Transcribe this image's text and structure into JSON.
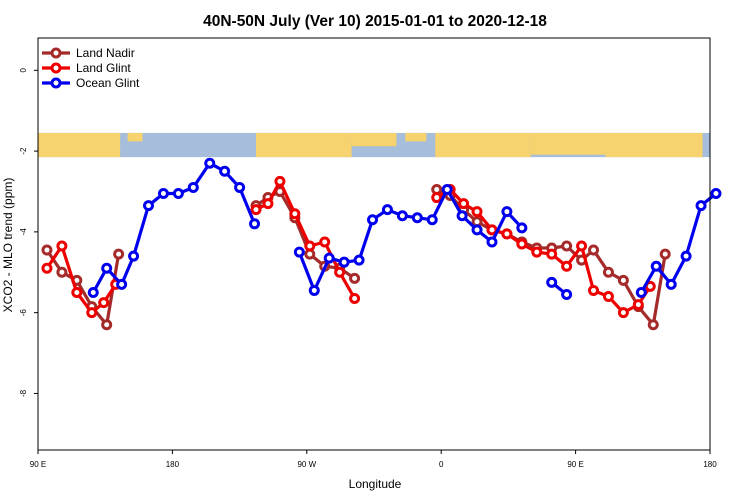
{
  "chart_data": {
    "type": "line",
    "title": "40N-50N July (Ver 10)   2015-01-01 to 2020-12-18",
    "xlabel": "Longitude",
    "ylabel": "XCO2 - MLO trend (ppm)",
    "xlim": [
      90,
      540
    ],
    "ylim": [
      -9.4,
      0.8
    ],
    "xticks": [
      {
        "value": 90,
        "label": "90 E"
      },
      {
        "value": 180,
        "label": "180"
      },
      {
        "value": 270,
        "label": "90 W"
      },
      {
        "value": 360,
        "label": "0"
      },
      {
        "value": 450,
        "label": "90 E"
      },
      {
        "value": 540,
        "label": "180"
      }
    ],
    "yticks": [
      {
        "value": 0,
        "label": "0"
      },
      {
        "value": -2,
        "label": "-2"
      },
      {
        "value": -4,
        "label": "-4"
      },
      {
        "value": -6,
        "label": "-6"
      },
      {
        "value": -8,
        "label": "-8"
      }
    ],
    "legend_position": "top-left",
    "map_strip": {
      "y_top": -1.55,
      "y_bottom": -2.15,
      "ocean_color": "#a6bddb",
      "land_color": "#f6d36e"
    },
    "series": [
      {
        "name": "Land Nadir",
        "color": "#a52a2a",
        "segments": [
          [
            [
              96,
              -4.45
            ],
            [
              106,
              -5.0
            ],
            [
              116,
              -5.2
            ],
            [
              126,
              -5.85
            ],
            [
              136,
              -6.3
            ],
            [
              144,
              -4.55
            ]
          ],
          [
            [
              236,
              -3.35
            ],
            [
              244,
              -3.15
            ],
            [
              252,
              -3.0
            ],
            [
              262,
              -3.65
            ],
            [
              272,
              -4.55
            ],
            [
              282,
              -4.85
            ],
            [
              292,
              -4.9
            ],
            [
              302,
              -5.15
            ]
          ],
          [
            [
              357,
              -2.95
            ],
            [
              366,
              -3.1
            ],
            [
              375,
              -3.45
            ],
            [
              384,
              -3.75
            ],
            [
              394,
              -3.95
            ],
            [
              404,
              -4.05
            ],
            [
              414,
              -4.25
            ],
            [
              424,
              -4.4
            ],
            [
              434,
              -4.4
            ],
            [
              444,
              -4.35
            ],
            [
              454,
              -4.7
            ],
            [
              462,
              -4.45
            ],
            [
              472,
              -5.0
            ],
            [
              482,
              -5.2
            ],
            [
              492,
              -5.85
            ],
            [
              502,
              -6.3
            ],
            [
              510,
              -4.55
            ]
          ]
        ]
      },
      {
        "name": "Land Glint",
        "color": "#ee0000",
        "segments": [
          [
            [
              96,
              -4.9
            ],
            [
              106,
              -4.35
            ],
            [
              116,
              -5.5
            ],
            [
              126,
              -6.0
            ],
            [
              134,
              -5.75
            ],
            [
              142,
              -5.3
            ]
          ],
          [
            [
              236,
              -3.45
            ],
            [
              244,
              -3.3
            ],
            [
              252,
              -2.75
            ],
            [
              262,
              -3.55
            ],
            [
              272,
              -4.35
            ],
            [
              282,
              -4.25
            ],
            [
              292,
              -5.0
            ],
            [
              302,
              -5.65
            ]
          ],
          [
            [
              357,
              -3.15
            ],
            [
              366,
              -2.95
            ],
            [
              375,
              -3.3
            ],
            [
              384,
              -3.5
            ],
            [
              394,
              -3.95
            ],
            [
              404,
              -4.05
            ],
            [
              414,
              -4.3
            ],
            [
              424,
              -4.5
            ],
            [
              434,
              -4.55
            ],
            [
              444,
              -4.85
            ],
            [
              454,
              -4.35
            ],
            [
              462,
              -5.45
            ],
            [
              472,
              -5.6
            ],
            [
              482,
              -6.0
            ],
            [
              492,
              -5.8
            ],
            [
              500,
              -5.35
            ]
          ]
        ]
      },
      {
        "name": "Ocean Glint",
        "color": "#0000ee",
        "segments": [
          [
            [
              127,
              -5.5
            ],
            [
              136,
              -4.9
            ],
            [
              146,
              -5.3
            ],
            [
              154,
              -4.6
            ],
            [
              164,
              -3.35
            ],
            [
              174,
              -3.05
            ],
            [
              184,
              -3.05
            ],
            [
              194,
              -2.9
            ],
            [
              205,
              -2.3
            ],
            [
              215,
              -2.5
            ],
            [
              225,
              -2.9
            ],
            [
              235,
              -3.8
            ]
          ],
          [
            [
              265,
              -4.5
            ],
            [
              275,
              -5.45
            ],
            [
              285,
              -4.65
            ],
            [
              295,
              -4.75
            ],
            [
              305,
              -4.7
            ],
            [
              314,
              -3.7
            ],
            [
              324,
              -3.45
            ],
            [
              334,
              -3.6
            ],
            [
              344,
              -3.65
            ],
            [
              354,
              -3.7
            ],
            [
              364,
              -2.95
            ],
            [
              374,
              -3.6
            ],
            [
              384,
              -3.95
            ],
            [
              394,
              -4.25
            ],
            [
              404,
              -3.5
            ],
            [
              414,
              -3.9
            ]
          ],
          [
            [
              434,
              -5.25
            ],
            [
              444,
              -5.55
            ]
          ],
          [
            [
              494,
              -5.5
            ],
            [
              504,
              -4.85
            ],
            [
              514,
              -5.3
            ],
            [
              524,
              -4.6
            ],
            [
              534,
              -3.35
            ],
            [
              544,
              -3.05
            ]
          ]
        ]
      }
    ]
  }
}
